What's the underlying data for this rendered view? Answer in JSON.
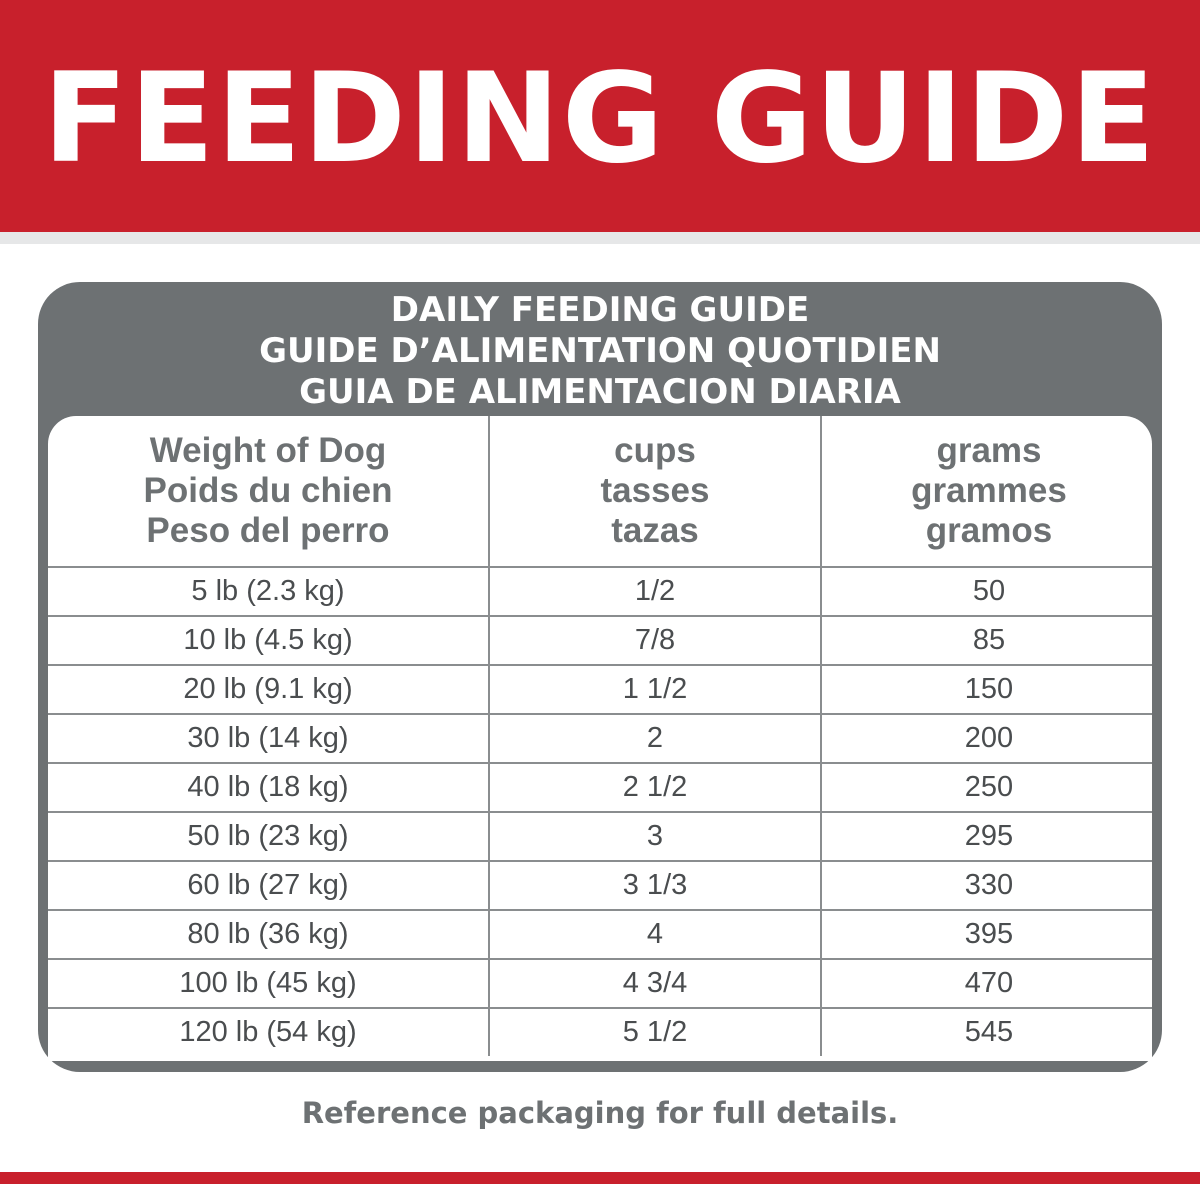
{
  "banner": {
    "title": "FEEDING GUIDE"
  },
  "card": {
    "heading_lines": [
      "DAILY FEEDING GUIDE",
      "GUIDE D’ALIMENTATION QUOTIDIEN",
      "GUIA DE ALIMENTACION DIARIA"
    ]
  },
  "table": {
    "headers": [
      [
        "Weight of Dog",
        "Poids du chien",
        "Peso del perro"
      ],
      [
        "cups",
        "tasses",
        "tazas"
      ],
      [
        "grams",
        "grammes",
        "gramos"
      ]
    ],
    "rows": [
      [
        "5 lb (2.3 kg)",
        "1/2",
        "50"
      ],
      [
        "10 lb (4.5 kg)",
        "7/8",
        "85"
      ],
      [
        "20 lb (9.1 kg)",
        "1 1/2",
        "150"
      ],
      [
        "30 lb (14 kg)",
        "2",
        "200"
      ],
      [
        "40 lb (18 kg)",
        "2 1/2",
        "250"
      ],
      [
        "50 lb (23 kg)",
        "3",
        "295"
      ],
      [
        "60 lb (27 kg)",
        "3 1/3",
        "330"
      ],
      [
        "80 lb (36 kg)",
        "4",
        "395"
      ],
      [
        "100 lb (45 kg)",
        "4 3/4",
        "470"
      ],
      [
        "120 lb (54 kg)",
        "5 1/2",
        "545"
      ]
    ]
  },
  "footer": {
    "note": "Reference packaging for full details."
  },
  "colors": {
    "brand_red": "#c8202c",
    "panel_gray": "#6d7173"
  }
}
